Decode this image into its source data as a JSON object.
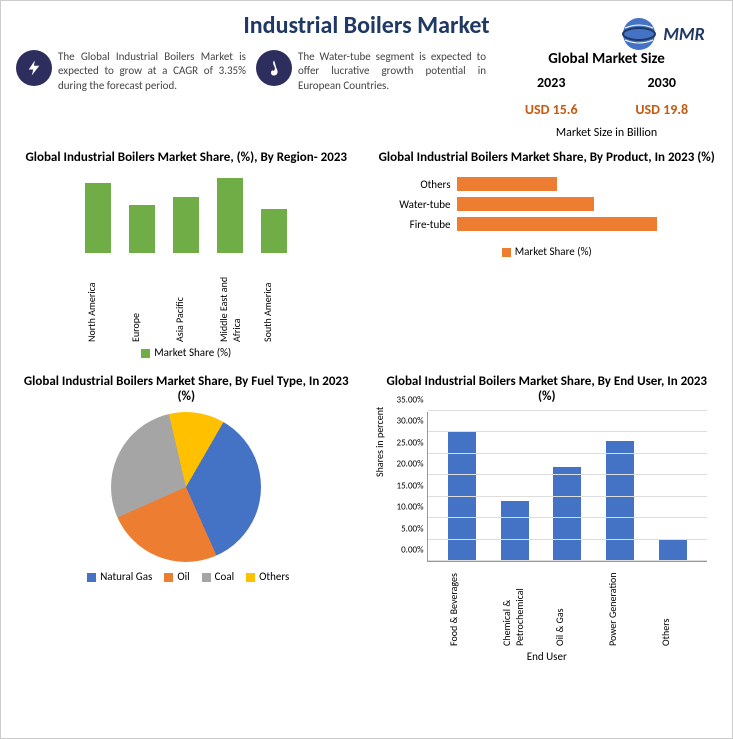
{
  "title": "Industrial Boilers Market",
  "logo_text": "MMR",
  "info1": {
    "text": "The Global Industrial Boilers Market is expected to grow at a CAGR of 3.35% during the forecast period."
  },
  "info2": {
    "text": "The Water-tube segment is expected to offer lucrative growth potential in European Countries."
  },
  "market_size": {
    "title": "Global Market Size",
    "year1": "2023",
    "year2": "2030",
    "value1": "USD 15.6",
    "value2": "USD 19.8",
    "subtitle": "Market Size in Billion",
    "value_color": "#c55a11"
  },
  "region_chart": {
    "title": "Global Industrial Boilers Market Share, (%), By Region- 2023",
    "categories": [
      "North America",
      "Europe",
      "Asia Pacific",
      "Middle East and Africa",
      "South America"
    ],
    "values": [
      58,
      40,
      46,
      62,
      36
    ],
    "bar_color": "#70ad47",
    "legend": "Market Share (%)"
  },
  "product_chart": {
    "title": "Global Industrial Boilers Market Share, By Product, In 2023 (%)",
    "categories": [
      "Others",
      "Water-tube",
      "Fire-tube"
    ],
    "values": [
      40,
      55,
      80
    ],
    "max": 100,
    "bar_color": "#ed7d31",
    "legend": "Market Share (%)"
  },
  "fuel_chart": {
    "title": "Global Industrial Boilers Market Share, By Fuel Type, In 2023 (%)",
    "slices": [
      {
        "label": "Natural Gas",
        "value": 35,
        "color": "#4472c4"
      },
      {
        "label": "Oil",
        "value": 25,
        "color": "#ed7d31"
      },
      {
        "label": "Coal",
        "value": 28,
        "color": "#a5a5a5"
      },
      {
        "label": "Others",
        "value": 12,
        "color": "#ffc000"
      }
    ]
  },
  "enduser_chart": {
    "title": "Global Industrial Boilers Market Share, By End User, In 2023 (%)",
    "categories": [
      "Food & Beverages",
      "Chemical & Petrochemical",
      "Oil & Gas",
      "Power Generation",
      "Others"
    ],
    "values": [
      30,
      14,
      22,
      28,
      5
    ],
    "ylim": [
      0,
      35
    ],
    "ytick_step": 5,
    "bar_color": "#4472c4",
    "ylabel": "Shares in percent",
    "xlabel": "End User",
    "tick_labels": [
      "0.00%",
      "5.00%",
      "10.00%",
      "15.00%",
      "20.00%",
      "25.00%",
      "30.00%",
      "35.00%"
    ]
  }
}
